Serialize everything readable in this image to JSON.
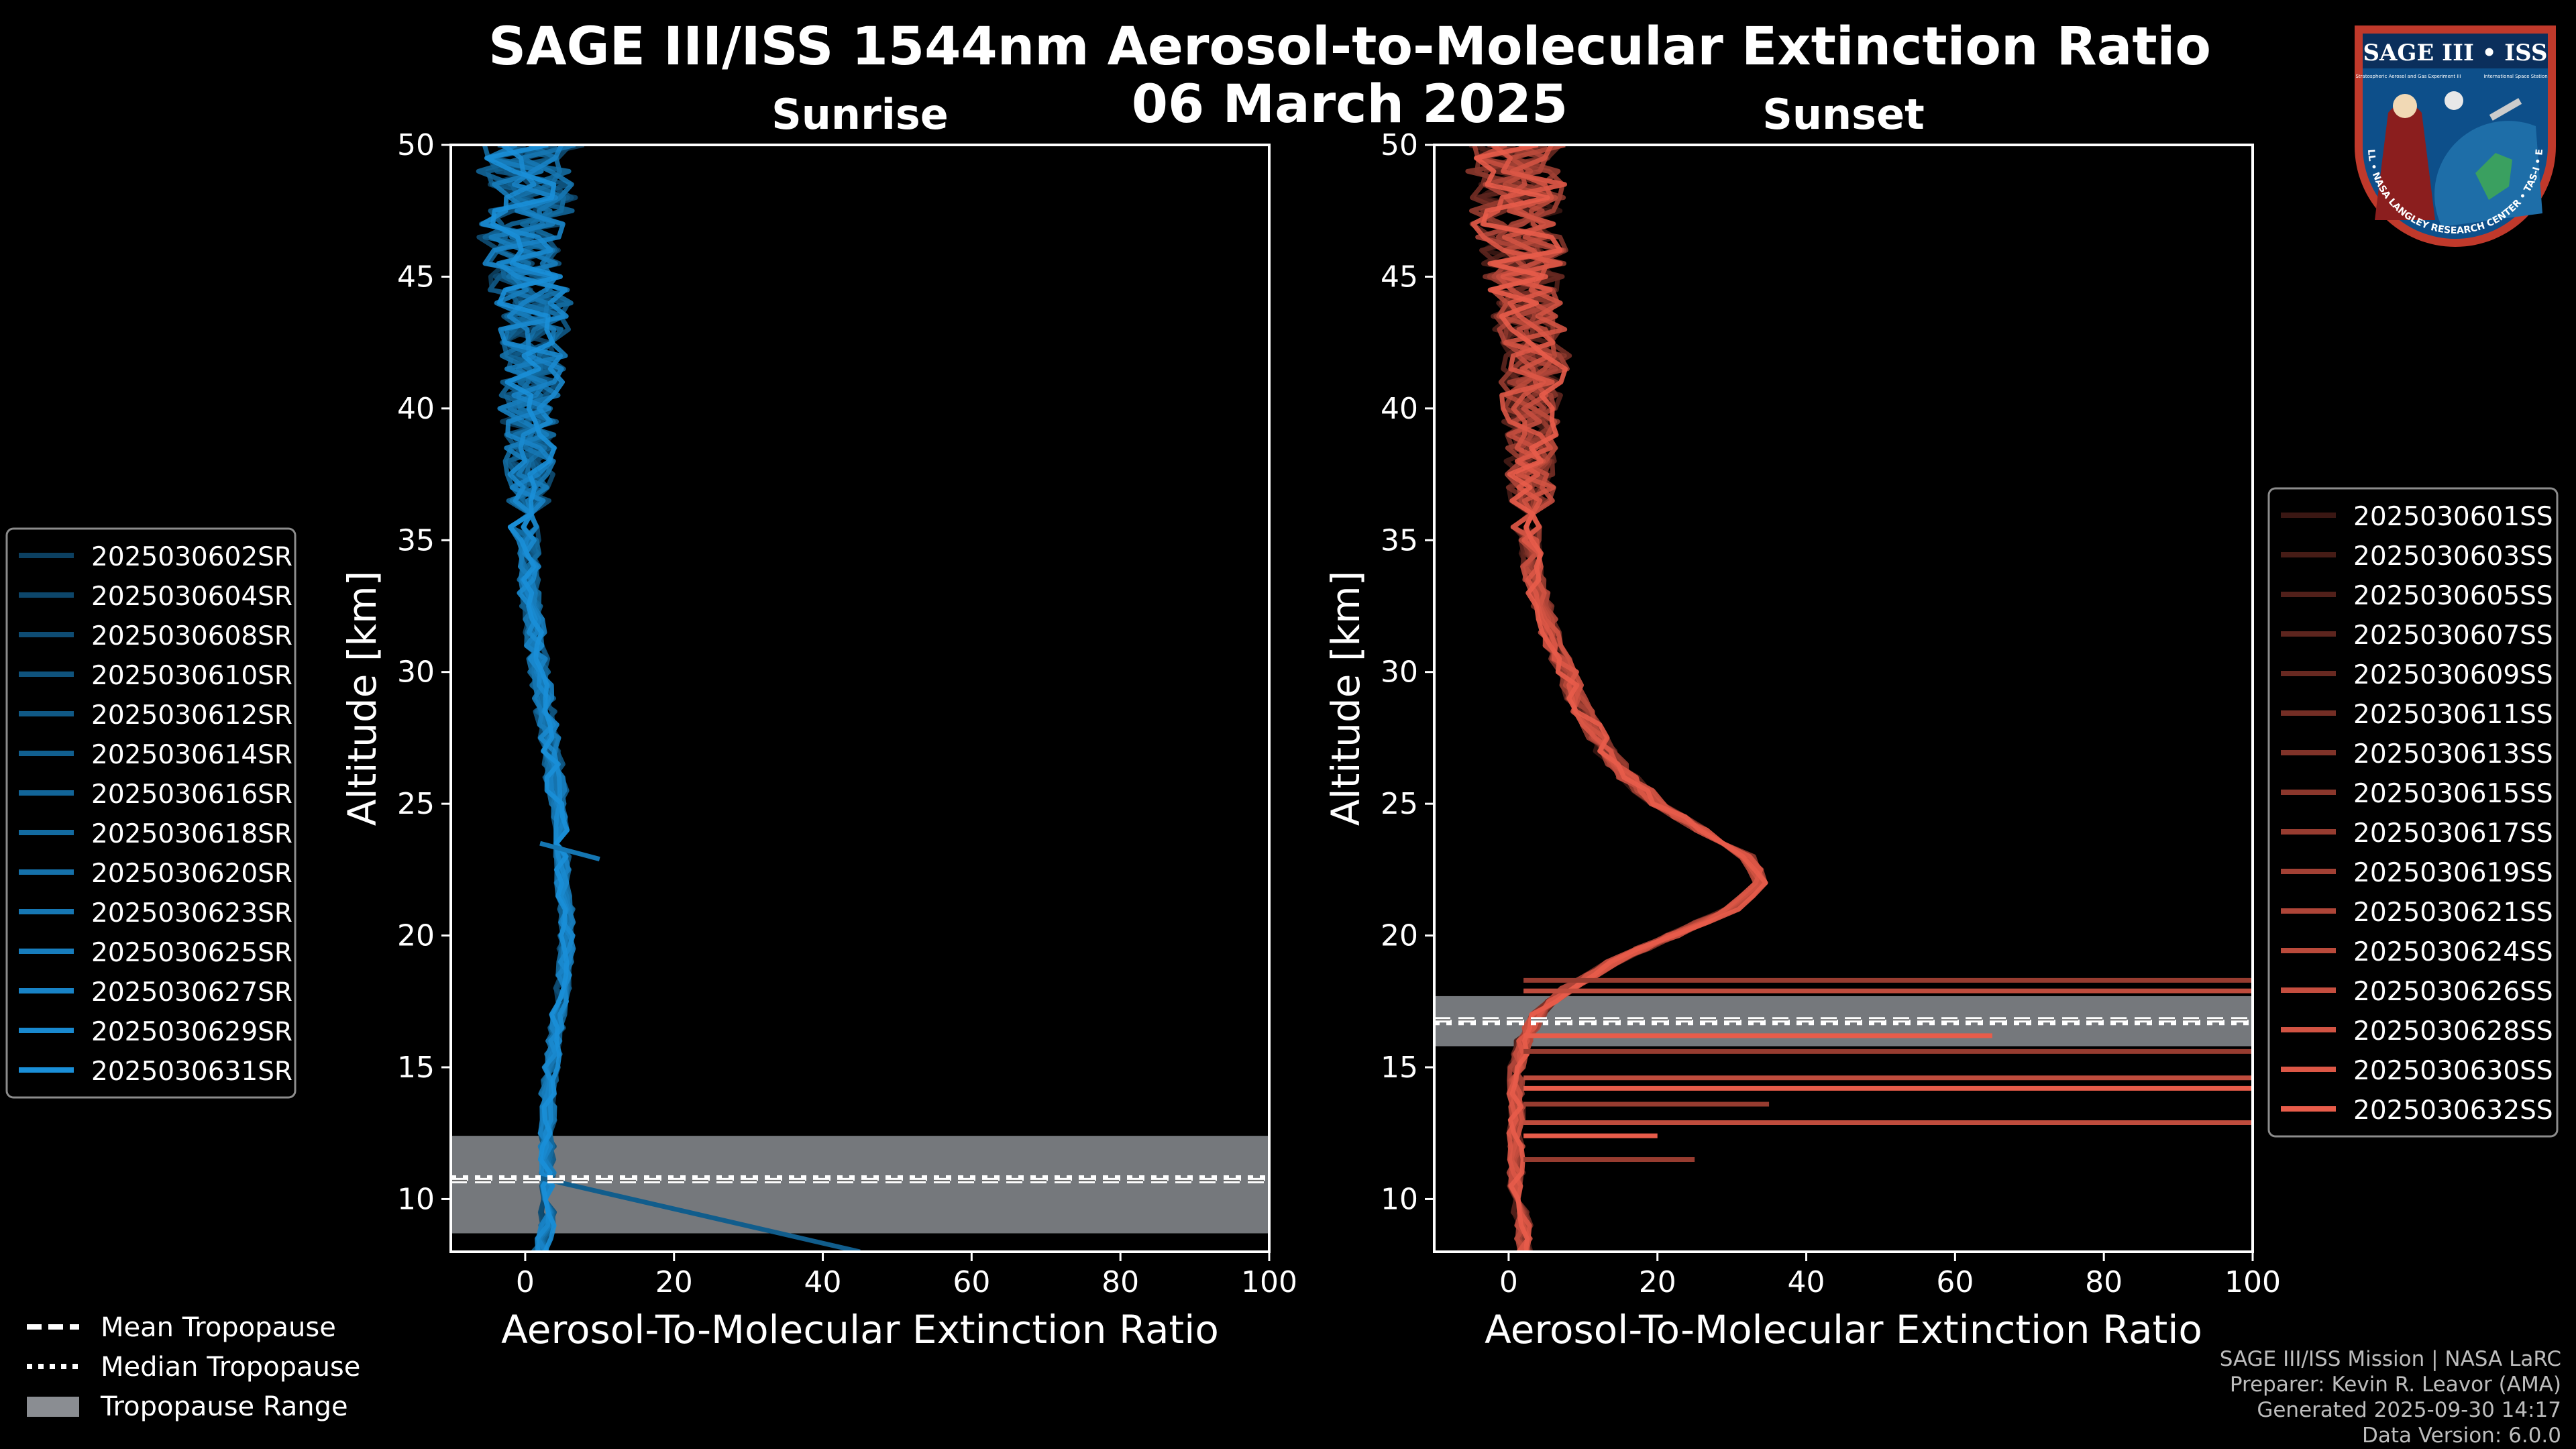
{
  "title_line1": "SAGE III/ISS 1544nm Aerosol-to-Molecular Extinction Ratio",
  "title_line2": "06 March 2025",
  "colors": {
    "sunrise": "#1a8fd8",
    "sunset": "#e85c4a",
    "tropo_fill": "#8a8d92"
  },
  "chart_data": [
    {
      "type": "line",
      "title": "Sunrise",
      "xlabel": "Aerosol-To-Molecular Extinction Ratio",
      "ylabel": "Altitude [km]",
      "xlim": [
        -10,
        100
      ],
      "ylim": [
        8,
        50
      ],
      "xticks": [
        "0",
        "20",
        "40",
        "60",
        "80",
        "100"
      ],
      "yticks": [
        "10",
        "15",
        "20",
        "25",
        "30",
        "35",
        "40",
        "45",
        "50"
      ],
      "tropopause": {
        "mean_km": 10.7,
        "median_km": 10.8,
        "range_km": [
          8.7,
          12.4
        ]
      },
      "series_names": [
        "2025030602SR",
        "2025030604SR",
        "2025030608SR",
        "2025030610SR",
        "2025030612SR",
        "2025030614SR",
        "2025030616SR",
        "2025030618SR",
        "2025030620SR",
        "2025030623SR",
        "2025030625SR",
        "2025030627SR",
        "2025030629SR",
        "2025030631SR"
      ],
      "mean_profile": {
        "alt": [
          8,
          9,
          10,
          11,
          12,
          13,
          14,
          15,
          16,
          17,
          18,
          19,
          20,
          21,
          22,
          23,
          24,
          25,
          26,
          27,
          28,
          29,
          30,
          31,
          32,
          33,
          34,
          35,
          36,
          37,
          38,
          39,
          40,
          41,
          42,
          43,
          44,
          45,
          46,
          47,
          48,
          49,
          50
        ],
        "value": [
          2,
          3,
          3,
          3,
          3,
          3,
          3,
          3.5,
          4,
          4.5,
          5,
          5.5,
          5.5,
          5.5,
          5,
          5,
          5,
          4.5,
          4,
          3.5,
          3,
          2.5,
          2,
          1.5,
          1,
          0.5,
          0.5,
          0.5,
          0.5,
          0.5,
          0.5,
          0.5,
          0.5,
          1,
          1,
          1,
          1,
          0,
          -1,
          0,
          1,
          0,
          1
        ]
      },
      "spikes": [
        {
          "alt_from": 10.8,
          "alt_to": 8.0,
          "value_to": 45
        },
        {
          "alt_from": 23.5,
          "alt_to": 22.9,
          "value_to": 10
        }
      ]
    },
    {
      "type": "line",
      "title": "Sunset",
      "xlabel": "Aerosol-To-Molecular Extinction Ratio",
      "ylabel": "Altitude [km]",
      "xlim": [
        -10,
        100
      ],
      "ylim": [
        8,
        50
      ],
      "xticks": [
        "0",
        "20",
        "40",
        "60",
        "80",
        "100"
      ],
      "yticks": [
        "10",
        "15",
        "20",
        "25",
        "30",
        "35",
        "40",
        "45",
        "50"
      ],
      "tropopause": {
        "mean_km": 16.8,
        "median_km": 16.7,
        "range_km": [
          15.8,
          17.7
        ]
      },
      "series_names": [
        "2025030601SS",
        "2025030603SS",
        "2025030605SS",
        "2025030607SS",
        "2025030609SS",
        "2025030611SS",
        "2025030613SS",
        "2025030615SS",
        "2025030617SS",
        "2025030619SS",
        "2025030621SS",
        "2025030624SS",
        "2025030626SS",
        "2025030628SS",
        "2025030630SS",
        "2025030632SS"
      ],
      "mean_profile": {
        "alt": [
          8,
          9,
          10,
          11,
          12,
          13,
          14,
          15,
          16,
          17,
          18,
          19,
          20,
          21,
          22,
          23,
          24,
          25,
          26,
          27,
          28,
          29,
          30,
          31,
          32,
          33,
          34,
          35,
          36,
          37,
          38,
          39,
          40,
          41,
          42,
          43,
          44,
          45,
          46,
          47,
          48,
          49,
          50
        ],
        "value": [
          2,
          2,
          1,
          1,
          1,
          1,
          1,
          1,
          2,
          4,
          8,
          14,
          22,
          30,
          34,
          32,
          26,
          20,
          16,
          13,
          11,
          9,
          8,
          6,
          5,
          4,
          3,
          3,
          3,
          3,
          3,
          3,
          3,
          3,
          4,
          3,
          2,
          2,
          2,
          1,
          1,
          1,
          1
        ]
      },
      "spikes": [
        {
          "alt_from": 18.3,
          "alt_to": 18.3,
          "value_to": 100
        },
        {
          "alt_from": 17.9,
          "alt_to": 17.9,
          "value_to": 100
        },
        {
          "alt_from": 16.2,
          "alt_to": 16.2,
          "value_to": 65
        },
        {
          "alt_from": 15.6,
          "alt_to": 15.6,
          "value_to": 100
        },
        {
          "alt_from": 14.6,
          "alt_to": 14.6,
          "value_to": 100
        },
        {
          "alt_from": 14.2,
          "alt_to": 14.2,
          "value_to": 100
        },
        {
          "alt_from": 13.6,
          "alt_to": 13.6,
          "value_to": 35
        },
        {
          "alt_from": 12.9,
          "alt_to": 12.9,
          "value_to": 100
        },
        {
          "alt_from": 12.4,
          "alt_to": 12.4,
          "value_to": 20
        },
        {
          "alt_from": 11.5,
          "alt_to": 11.5,
          "value_to": 25
        }
      ]
    }
  ],
  "tropo_legend": [
    "Mean Tropopause",
    "Median Tropopause",
    "Tropopause Range"
  ],
  "credits": [
    "SAGE III/ISS Mission | NASA LaRC",
    "Preparer: Kevin R. Leavor (AMA)",
    "Generated 2025-09-30 14:17",
    "Data Version: 6.0.0"
  ],
  "logo": {
    "name": "SAGE III • ISS",
    "sub_left": "Stratospheric Aerosol and Gas Experiment III",
    "sub_right": "International Space Station",
    "ring": "BALL • NASA LANGLEY RESEARCH CENTER • TAS-I • ESA"
  }
}
